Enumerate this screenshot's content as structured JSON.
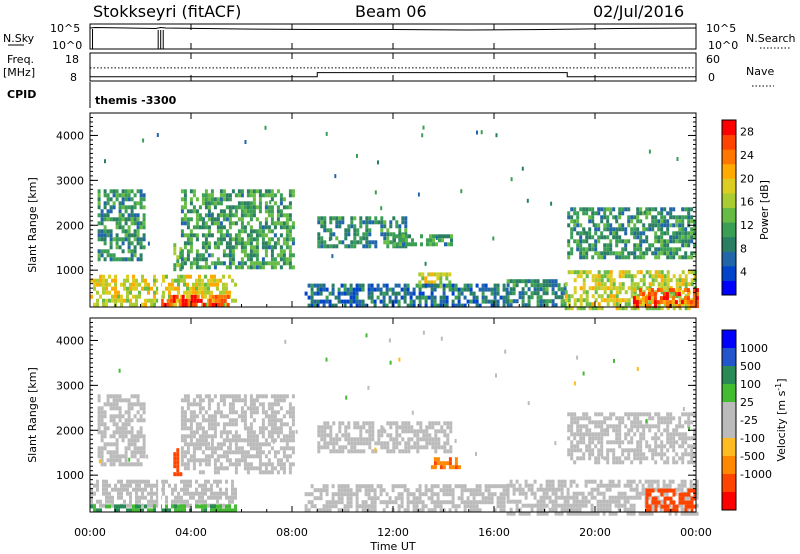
{
  "header": {
    "station": "Stokkseyri (fitACF)",
    "beam": "Beam 06",
    "date": "02/Jul/2016"
  },
  "left_labels": {
    "nsky": "N.Sky",
    "freq_1": "Freq.",
    "freq_2": "[MHz]",
    "cpid": "CPID"
  },
  "right_labels": {
    "nsearch": "N.Search",
    "nave": "Nave"
  },
  "cpid_name": "themis -3300",
  "chart_data": [
    {
      "type": "line",
      "panel": "noise",
      "ylabel_left": "N.Sky",
      "ylabel_right": "N.Search",
      "left_ticks": [
        "10^5",
        "10^0"
      ],
      "right_ticks": [
        "10^5",
        "10^0"
      ],
      "series": [
        {
          "name": "N.Sky",
          "x_hours": [
            0.0,
            0.2,
            2.6,
            2.8,
            3.0,
            6.0,
            9.0,
            12.0,
            15.0,
            18.0,
            21.0,
            24.0
          ],
          "values": [
            4.2,
            4.3,
            4.1,
            4.3,
            4.2,
            4.0,
            3.9,
            3.9,
            3.8,
            3.9,
            4.1,
            4.2
          ]
        },
        {
          "name": "N.Search",
          "x_hours": [
            0.0,
            6.0,
            12.0,
            18.0,
            24.0
          ],
          "values": [
            0,
            0,
            0,
            0,
            0
          ]
        }
      ]
    },
    {
      "type": "line",
      "panel": "frequency",
      "ylabel_left": "Freq. [MHz]",
      "ylabel_right": "Nave",
      "left_ticks": [
        "18",
        "8"
      ],
      "right_ticks": [
        "60",
        "0"
      ],
      "series": [
        {
          "name": "Freq.",
          "x_hours": [
            0.0,
            9.0,
            9.0,
            18.9,
            18.9,
            24.0
          ],
          "values": [
            9.5,
            9.5,
            11.0,
            11.0,
            9.5,
            9.5
          ]
        },
        {
          "name": "Nave",
          "x_hours": [
            0.0,
            24.0
          ],
          "values": [
            28,
            28
          ]
        }
      ]
    },
    {
      "type": "heatmap",
      "panel": "power",
      "xlabel": "",
      "ylabel": "Slant Range [km]",
      "xlim_hours": [
        0,
        24
      ],
      "ylim_km": [
        180,
        4500
      ],
      "yticks": [
        "1000",
        "2000",
        "3000",
        "4000"
      ],
      "colorbar_label": "Power [dB]",
      "colorbar_ticks": [
        "4",
        "8",
        "12",
        "16",
        "20",
        "24",
        "28"
      ],
      "colorbar_range": [
        0,
        30
      ],
      "colorbar_colors": [
        "#0000ff",
        "#0044cc",
        "#2266aa",
        "#2a7f62",
        "#3a9e55",
        "#66bb44",
        "#aacc33",
        "#ddcc22",
        "#ffaa00",
        "#ff7700",
        "#ff4400",
        "#ff0000"
      ],
      "regions": [
        {
          "t0": 0.0,
          "t1": 5.8,
          "r0": 200,
          "r1": 900,
          "level": 18
        },
        {
          "t0": 2.8,
          "t1": 5.5,
          "r0": 200,
          "r1": 450,
          "level": 26
        },
        {
          "t0": 0.3,
          "t1": 2.2,
          "r0": 1200,
          "r1": 2800,
          "level": 10
        },
        {
          "t0": 3.3,
          "t1": 3.6,
          "r0": 1000,
          "r1": 1600,
          "level": 14
        },
        {
          "t0": 3.6,
          "t1": 8.0,
          "r0": 1100,
          "r1": 2800,
          "level": 11
        },
        {
          "t0": 9.0,
          "t1": 12.5,
          "r0": 1500,
          "r1": 2200,
          "level": 9
        },
        {
          "t0": 12.0,
          "t1": 14.3,
          "r0": 1600,
          "r1": 1800,
          "level": 11
        },
        {
          "t0": 13.0,
          "t1": 14.2,
          "r0": 650,
          "r1": 950,
          "level": 17
        },
        {
          "t0": 8.5,
          "t1": 16.5,
          "r0": 180,
          "r1": 700,
          "level": 7
        },
        {
          "t0": 16.5,
          "t1": 18.8,
          "r0": 180,
          "r1": 800,
          "level": 9
        },
        {
          "t0": 18.8,
          "t1": 24.0,
          "r0": 180,
          "r1": 1000,
          "level": 17
        },
        {
          "t0": 21.5,
          "t1": 24.0,
          "r0": 180,
          "r1": 600,
          "level": 25
        },
        {
          "t0": 18.9,
          "t1": 24.0,
          "r0": 1300,
          "r1": 2400,
          "level": 10
        }
      ]
    },
    {
      "type": "heatmap",
      "panel": "velocity",
      "xlabel": "Time UT",
      "ylabel": "Slant Range [km]",
      "xlim_hours": [
        0,
        24
      ],
      "ylim_km": [
        180,
        4500
      ],
      "xticks": [
        "00:00",
        "04:00",
        "08:00",
        "12:00",
        "16:00",
        "20:00",
        "00:00"
      ],
      "yticks": [
        "1000",
        "2000",
        "3000",
        "4000"
      ],
      "colorbar_label": "Velocity [m s-1]",
      "colorbar_ticks": [
        "1000",
        "500",
        "100",
        "25",
        "-25",
        "-100",
        "-500",
        "-1000"
      ],
      "colorbar_colors": [
        "#0000ff",
        "#2255cc",
        "#2a8a55",
        "#44bb33",
        "#bbbbbb",
        "#bbbbbb",
        "#ffbb22",
        "#ff8800",
        "#ff4400",
        "#ff0000"
      ],
      "regions": [
        {
          "t0": 0.0,
          "t1": 5.8,
          "r0": 300,
          "r1": 900,
          "level": 0
        },
        {
          "t0": 0.0,
          "t1": 5.8,
          "r0": 200,
          "r1": 350,
          "level": 60
        },
        {
          "t0": 3.3,
          "t1": 3.6,
          "r0": 1000,
          "r1": 1600,
          "level": -500
        },
        {
          "t0": 0.3,
          "t1": 2.2,
          "r0": 1200,
          "r1": 2800,
          "level": 0
        },
        {
          "t0": 3.6,
          "t1": 8.0,
          "r0": 1100,
          "r1": 2800,
          "level": 0
        },
        {
          "t0": 9.0,
          "t1": 14.3,
          "r0": 1500,
          "r1": 2200,
          "level": 0
        },
        {
          "t0": 13.5,
          "t1": 14.6,
          "r0": 1200,
          "r1": 1400,
          "level": -300
        },
        {
          "t0": 8.5,
          "t1": 16.5,
          "r0": 180,
          "r1": 800,
          "level": 0
        },
        {
          "t0": 16.5,
          "t1": 24.0,
          "r0": 180,
          "r1": 900,
          "level": 0
        },
        {
          "t0": 22.0,
          "t1": 24.0,
          "r0": 180,
          "r1": 700,
          "level": -400
        },
        {
          "t0": 18.9,
          "t1": 24.0,
          "r0": 1300,
          "r1": 2400,
          "level": 0
        }
      ]
    }
  ],
  "colors": {
    "frame": "#000000",
    "gap": "#ffffff"
  }
}
